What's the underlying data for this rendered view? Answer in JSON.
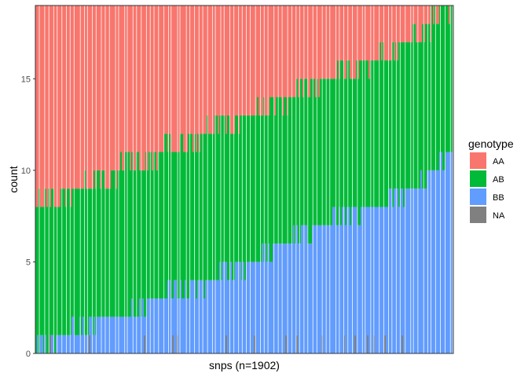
{
  "chart_data": {
    "type": "bar",
    "stacked": true,
    "xlabel": "snps (n=1902)",
    "ylabel": "count",
    "ylim": [
      0,
      19
    ],
    "yticks": [
      0,
      5,
      10,
      15
    ],
    "grid": false,
    "legend_position": "right",
    "legend_title": "genotype",
    "x_tick_labels": "none",
    "series_colors": {
      "AA": "#F8766D",
      "AB": "#00BA38",
      "BB": "#619CFF",
      "NA": "#808080"
    },
    "bar_total": 19,
    "n_snps": 1902,
    "snps_sorted": "by BB count ascending, then AB",
    "bb_count_profile": [
      {
        "fraction": 0.0,
        "bb": 0
      },
      {
        "fraction": 0.06,
        "bb": 1
      },
      {
        "fraction": 0.18,
        "bb": 2
      },
      {
        "fraction": 0.3,
        "bb": 3
      },
      {
        "fraction": 0.42,
        "bb": 4
      },
      {
        "fraction": 0.52,
        "bb": 5
      },
      {
        "fraction": 0.6,
        "bb": 6
      },
      {
        "fraction": 0.68,
        "bb": 7
      },
      {
        "fraction": 0.8,
        "bb": 8
      },
      {
        "fraction": 0.9,
        "bb": 9
      },
      {
        "fraction": 1.0,
        "bb": 11
      }
    ],
    "ab_bb_top_profile": [
      {
        "fraction": 0.0,
        "top": 8
      },
      {
        "fraction": 0.1,
        "top": 9
      },
      {
        "fraction": 0.2,
        "top": 10
      },
      {
        "fraction": 0.3,
        "top": 11
      },
      {
        "fraction": 0.4,
        "top": 12
      },
      {
        "fraction": 0.5,
        "top": 13
      },
      {
        "fraction": 0.6,
        "top": 14
      },
      {
        "fraction": 0.7,
        "top": 15
      },
      {
        "fraction": 0.8,
        "top": 16
      },
      {
        "fraction": 0.9,
        "top": 17
      },
      {
        "fraction": 1.0,
        "top": 19
      }
    ],
    "legend": [
      {
        "key": "AA",
        "label": "AA"
      },
      {
        "key": "AB",
        "label": "AB"
      },
      {
        "key": "BB",
        "label": "BB"
      },
      {
        "key": "NA",
        "label": "NA"
      }
    ]
  }
}
